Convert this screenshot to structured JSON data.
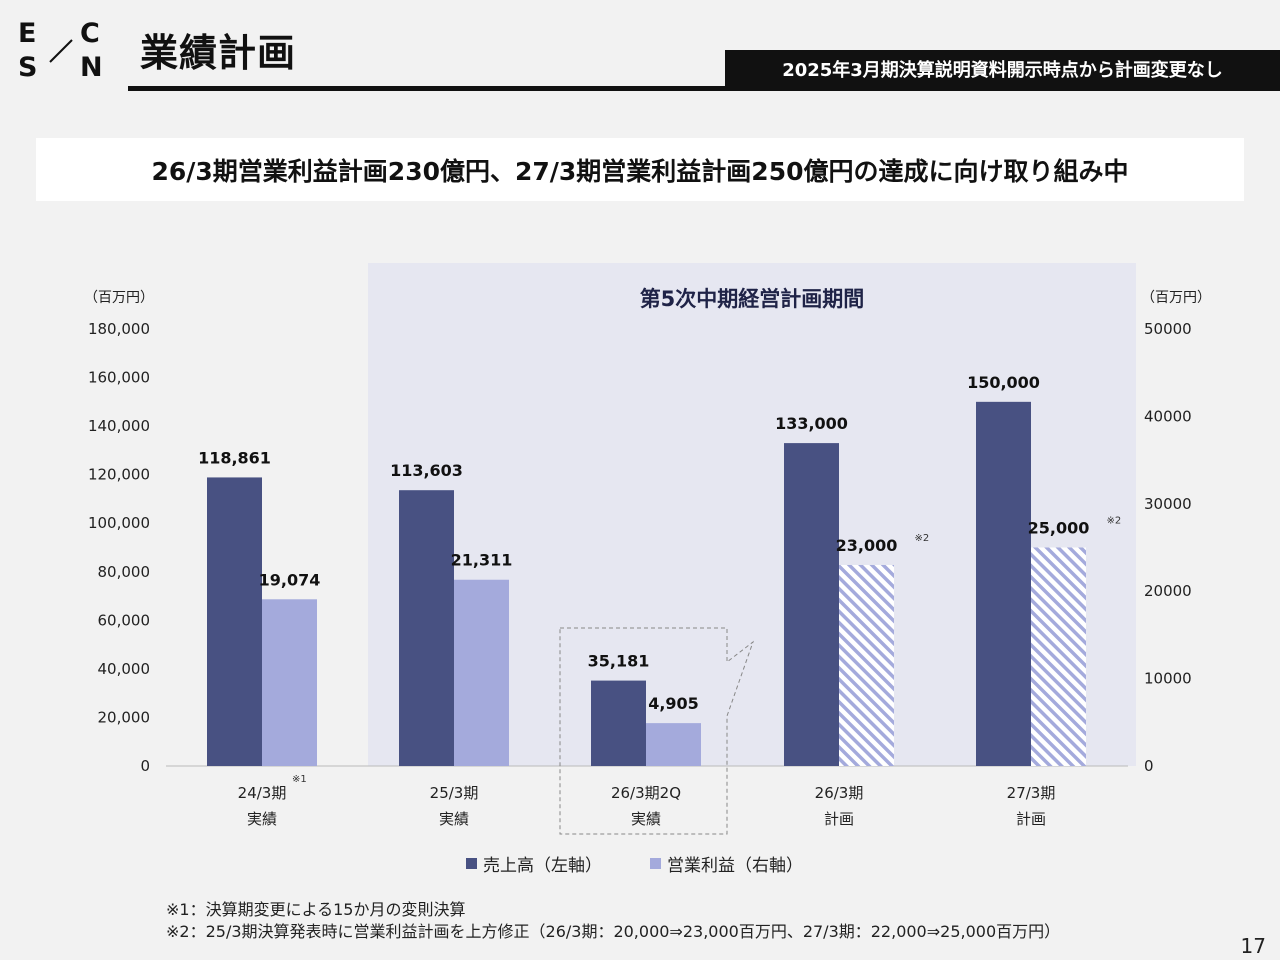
{
  "logo": {
    "letters": [
      "E",
      "C",
      "S",
      "N"
    ]
  },
  "header": {
    "title": "業績計画",
    "notice": "2025年3月期決算説明資料開示時点から計画変更なし"
  },
  "headline": "26/3期営業利益計画230億円、27/3期営業利益計画250億円の達成に向け取り組み中",
  "chart_data": {
    "type": "bar",
    "title": "",
    "period_label": "第5次中期経営計画期間",
    "categories": [
      {
        "line1": "24/3期",
        "line2": "実績",
        "mark": "※1"
      },
      {
        "line1": "25/3期",
        "line2": "実績",
        "mark": ""
      },
      {
        "line1": "26/3期2Q",
        "line2": "実績",
        "mark": ""
      },
      {
        "line1": "26/3期",
        "line2": "計画",
        "mark": ""
      },
      {
        "line1": "27/3期",
        "line2": "計画",
        "mark": ""
      }
    ],
    "series": [
      {
        "name": "売上高（左軸）",
        "axis": "left",
        "values": [
          118861,
          113603,
          35181,
          133000,
          150000
        ],
        "labels": [
          "118,861",
          "113,603",
          "35,181",
          "133,000",
          "150,000"
        ],
        "color": "#485182"
      },
      {
        "name": "営業利益（右軸）",
        "axis": "right",
        "values": [
          19074,
          21311,
          4905,
          23000,
          25000
        ],
        "labels": [
          "19,074",
          "21,311",
          "4,905",
          "23,000",
          "25,000"
        ],
        "label_marks": [
          "",
          "",
          "",
          "※2",
          "※2"
        ],
        "planned": [
          false,
          false,
          false,
          true,
          true
        ],
        "color": "#a4aadc"
      }
    ],
    "y_left": {
      "unit": "（百万円）",
      "ylim": [
        0,
        180000
      ],
      "ticks": [
        "0",
        "20,000",
        "40,000",
        "60,000",
        "80,000",
        "100,000",
        "120,000",
        "140,000",
        "160,000",
        "180,000"
      ]
    },
    "y_right": {
      "unit": "（百万円）",
      "ylim": [
        0,
        50000
      ],
      "ticks": [
        "0",
        "10000",
        "20000",
        "30000",
        "40000",
        "50000"
      ]
    },
    "grid": false,
    "legend_position": "bottom",
    "highlighted_period": {
      "from": "25/3期",
      "to": "27/3期"
    },
    "callout_category": "26/3期2Q"
  },
  "footnotes": [
    "※1：決算期変更による15か月の変則決算",
    "※2：25/3期決算発表時に営業利益計画を上方修正（26/3期：20,000⇒23,000百万円、27/3期：22,000⇒25,000百万円）"
  ],
  "page_number": "17"
}
